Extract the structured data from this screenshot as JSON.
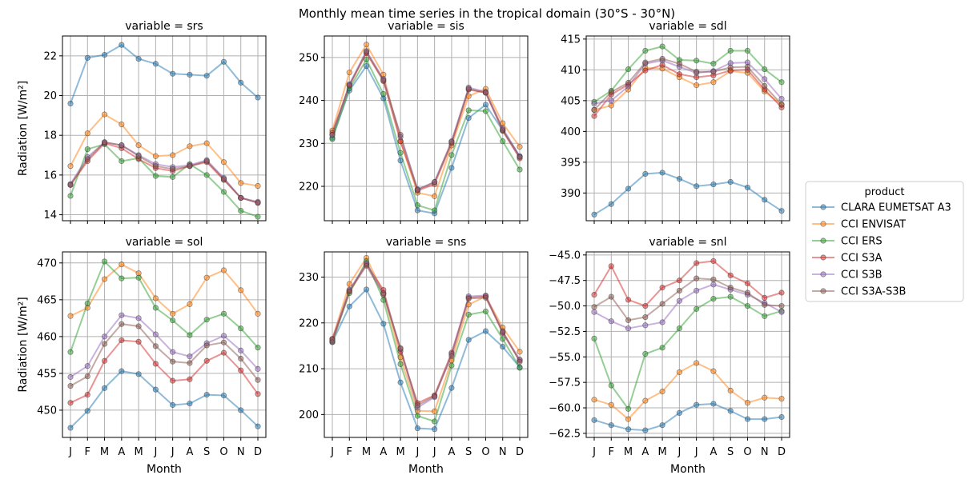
{
  "figure": {
    "title": "Monthly mean time series in the tropical domain (30°S - 30°N)",
    "legend_title": "product",
    "legend_placement": "right",
    "ylabel": "Radiation [W/m²]",
    "xlabel": "Month",
    "grid": true
  },
  "chart_data": [
    {
      "type": "line",
      "title": "variable = srs",
      "ylim": [
        13.7,
        23.0
      ],
      "yticks": [
        14,
        16,
        18,
        20,
        22
      ],
      "yticklabels": [
        "14",
        "16",
        "18",
        "20",
        "22"
      ],
      "categories": [
        "J",
        "F",
        "M",
        "A",
        "M",
        "J",
        "J",
        "A",
        "S",
        "O",
        "N",
        "D"
      ],
      "series": [
        {
          "name": "CLARA EUMETSAT A3",
          "color": "#1f77b4",
          "values": [
            19.6,
            21.9,
            22.05,
            22.55,
            21.85,
            21.6,
            21.1,
            21.05,
            21.0,
            21.7,
            20.65,
            19.9
          ]
        },
        {
          "name": "CCI ENVISAT",
          "color": "#ff7f0e",
          "values": [
            16.45,
            18.1,
            19.05,
            18.55,
            17.5,
            16.95,
            17.0,
            17.45,
            17.6,
            16.65,
            15.6,
            15.45
          ]
        },
        {
          "name": "CCI ERS",
          "color": "#2ca02c",
          "values": [
            14.95,
            17.3,
            17.55,
            16.7,
            16.85,
            15.95,
            15.9,
            16.55,
            16.0,
            15.15,
            14.2,
            13.9
          ]
        },
        {
          "name": "CCI S3A",
          "color": "#d62728",
          "values": [
            15.5,
            16.7,
            17.6,
            17.35,
            16.8,
            16.35,
            16.2,
            16.45,
            16.65,
            15.75,
            14.85,
            14.6
          ]
        },
        {
          "name": "CCI S3B",
          "color": "#9467bd",
          "values": [
            15.55,
            16.9,
            17.65,
            17.5,
            17.0,
            16.55,
            16.4,
            16.5,
            16.75,
            15.85,
            14.85,
            14.65
          ]
        },
        {
          "name": "CCI S3A-S3B",
          "color": "#8c564b",
          "values": [
            15.5,
            16.8,
            17.65,
            17.5,
            16.95,
            16.45,
            16.3,
            16.45,
            16.7,
            15.8,
            14.85,
            14.6
          ]
        }
      ]
    },
    {
      "type": "line",
      "title": "variable = sis",
      "ylim": [
        212.0,
        255.0
      ],
      "yticks": [
        220,
        230,
        240,
        250
      ],
      "yticklabels": [
        "220",
        "230",
        "240",
        "250"
      ],
      "categories": [
        "J",
        "F",
        "M",
        "A",
        "M",
        "J",
        "J",
        "A",
        "S",
        "O",
        "N",
        "D"
      ],
      "series": [
        {
          "name": "CLARA EUMETSAT A3",
          "color": "#1f77b4",
          "values": [
            231.3,
            242.3,
            248.0,
            240.5,
            226.0,
            214.4,
            213.7,
            224.3,
            235.9,
            239.0,
            233.0,
            227.0
          ]
        },
        {
          "name": "CCI ENVISAT",
          "color": "#ff7f0e",
          "values": [
            233.0,
            246.5,
            253.0,
            246.0,
            230.5,
            218.5,
            217.7,
            229.5,
            241.0,
            242.7,
            234.7,
            229.2
          ]
        },
        {
          "name": "CCI ERS",
          "color": "#2ca02c",
          "values": [
            231.0,
            242.8,
            249.5,
            241.5,
            227.8,
            215.6,
            214.4,
            227.3,
            237.7,
            237.5,
            230.5,
            223.9
          ]
        },
        {
          "name": "CCI S3A",
          "color": "#d62728",
          "values": [
            232.5,
            243.5,
            251.0,
            244.5,
            230.5,
            219.0,
            220.5,
            230.0,
            242.5,
            241.8,
            232.9,
            226.5
          ]
        },
        {
          "name": "CCI S3B",
          "color": "#9467bd",
          "values": [
            232.0,
            243.8,
            251.5,
            245.0,
            231.5,
            219.3,
            221.0,
            230.5,
            243.0,
            242.0,
            233.5,
            227.0
          ]
        },
        {
          "name": "CCI S3A-S3B",
          "color": "#8c564b",
          "values": [
            232.0,
            243.5,
            251.3,
            244.7,
            232.0,
            219.2,
            221.0,
            230.3,
            242.7,
            241.8,
            233.2,
            226.8
          ]
        }
      ]
    },
    {
      "type": "line",
      "title": "variable = sdl",
      "ylim": [
        385.5,
        415.5
      ],
      "yticks": [
        390,
        395,
        400,
        405,
        410,
        415
      ],
      "yticklabels": [
        "390",
        "395",
        "400",
        "405",
        "410",
        "415"
      ],
      "categories": [
        "J",
        "F",
        "M",
        "A",
        "M",
        "J",
        "J",
        "A",
        "S",
        "O",
        "N",
        "D"
      ],
      "series": [
        {
          "name": "CLARA EUMETSAT A3",
          "color": "#1f77b4",
          "values": [
            386.5,
            388.2,
            390.7,
            393.1,
            393.3,
            392.3,
            391.1,
            391.4,
            391.8,
            390.9,
            388.9,
            387.1
          ]
        },
        {
          "name": "CCI ENVISAT",
          "color": "#ff7f0e",
          "values": [
            403.5,
            404.2,
            406.8,
            410.3,
            410.2,
            408.8,
            407.5,
            408.0,
            409.8,
            409.5,
            406.5,
            404.3
          ]
        },
        {
          "name": "CCI ERS",
          "color": "#2ca02c",
          "values": [
            404.8,
            406.6,
            410.1,
            413.1,
            413.8,
            411.6,
            411.5,
            411.0,
            413.1,
            413.1,
            410.1,
            408.0
          ]
        },
        {
          "name": "CCI S3A",
          "color": "#d62728",
          "values": [
            402.5,
            406.0,
            407.6,
            409.9,
            410.8,
            409.3,
            408.8,
            409.1,
            409.9,
            410.0,
            406.8,
            403.9
          ]
        },
        {
          "name": "CCI S3B",
          "color": "#9467bd",
          "values": [
            404.5,
            405.0,
            407.3,
            411.0,
            411.5,
            410.5,
            409.5,
            409.8,
            411.1,
            411.2,
            408.5,
            405.3
          ]
        },
        {
          "name": "CCI S3A-S3B",
          "color": "#8c564b",
          "values": [
            403.5,
            406.4,
            407.9,
            411.2,
            411.8,
            411.0,
            409.7,
            409.7,
            410.4,
            410.5,
            407.4,
            404.4
          ]
        }
      ]
    },
    {
      "type": "line",
      "title": "variable = sol",
      "ylim": [
        446.3,
        471.5
      ],
      "yticks": [
        450,
        455,
        460,
        465,
        470
      ],
      "yticklabels": [
        "450",
        "455",
        "460",
        "465",
        "470"
      ],
      "categories": [
        "J",
        "F",
        "M",
        "A",
        "M",
        "J",
        "J",
        "A",
        "S",
        "O",
        "N",
        "D"
      ],
      "series": [
        {
          "name": "CLARA EUMETSAT A3",
          "color": "#1f77b4",
          "values": [
            447.6,
            449.9,
            453.0,
            455.3,
            454.9,
            452.8,
            450.7,
            450.9,
            452.1,
            452.0,
            450.0,
            447.8
          ]
        },
        {
          "name": "CCI ENVISAT",
          "color": "#ff7f0e",
          "values": [
            462.8,
            463.9,
            467.8,
            469.8,
            468.6,
            465.2,
            463.1,
            464.4,
            468.0,
            469.0,
            466.3,
            463.1
          ]
        },
        {
          "name": "CCI ERS",
          "color": "#2ca02c",
          "values": [
            457.9,
            464.5,
            470.2,
            467.9,
            468.0,
            463.9,
            462.2,
            460.2,
            462.3,
            463.1,
            461.1,
            458.5
          ]
        },
        {
          "name": "CCI S3A",
          "color": "#d62728",
          "values": [
            451.0,
            452.1,
            456.7,
            459.5,
            459.3,
            456.3,
            454.0,
            454.2,
            456.7,
            457.8,
            455.4,
            452.2
          ]
        },
        {
          "name": "CCI S3B",
          "color": "#9467bd",
          "values": [
            454.5,
            456.0,
            460.0,
            462.9,
            462.5,
            460.3,
            457.9,
            457.3,
            459.1,
            460.1,
            458.1,
            455.6
          ]
        },
        {
          "name": "CCI S3A-S3B",
          "color": "#8c564b",
          "values": [
            453.3,
            454.6,
            459.0,
            461.7,
            461.4,
            458.7,
            456.6,
            456.4,
            458.8,
            459.2,
            457.0,
            454.1
          ]
        }
      ]
    },
    {
      "type": "line",
      "title": "variable = sns",
      "ylim": [
        195.0,
        235.5
      ],
      "yticks": [
        200,
        210,
        220,
        230
      ],
      "yticklabels": [
        "200",
        "210",
        "220",
        "230"
      ],
      "categories": [
        "J",
        "F",
        "M",
        "A",
        "M",
        "J",
        "J",
        "A",
        "S",
        "O",
        "N",
        "D"
      ],
      "series": [
        {
          "name": "CLARA EUMETSAT A3",
          "color": "#1f77b4",
          "values": [
            215.8,
            223.6,
            227.3,
            219.8,
            207.0,
            197.0,
            196.8,
            205.8,
            216.3,
            218.2,
            214.8,
            210.3
          ]
        },
        {
          "name": "CCI ENVISAT",
          "color": "#ff7f0e",
          "values": [
            216.5,
            228.5,
            234.2,
            226.5,
            212.5,
            200.8,
            200.7,
            211.8,
            224.0,
            225.8,
            219.0,
            213.7
          ]
        },
        {
          "name": "CCI ERS",
          "color": "#2ca02c",
          "values": [
            216.0,
            226.5,
            233.5,
            225.0,
            211.0,
            199.7,
            198.5,
            210.7,
            221.8,
            222.5,
            216.5,
            210.2
          ]
        },
        {
          "name": "CCI S3A",
          "color": "#d62728",
          "values": [
            216.5,
            227.0,
            232.8,
            227.2,
            213.8,
            202.5,
            204.2,
            213.5,
            225.5,
            225.8,
            217.8,
            211.8
          ]
        },
        {
          "name": "CCI S3B",
          "color": "#9467bd",
          "values": [
            216.2,
            227.2,
            233.0,
            226.5,
            214.3,
            201.5,
            203.8,
            213.2,
            225.8,
            226.0,
            218.0,
            212.0
          ]
        },
        {
          "name": "CCI S3A-S3B",
          "color": "#8c564b",
          "values": [
            215.8,
            226.8,
            232.5,
            226.2,
            214.5,
            202.0,
            204.0,
            212.8,
            225.3,
            225.5,
            218.2,
            211.5
          ]
        }
      ]
    },
    {
      "type": "line",
      "title": "variable = snl",
      "ylim": [
        -62.9,
        -44.7
      ],
      "yticks": [
        -62.5,
        -60.0,
        -57.5,
        -55.0,
        -52.5,
        -50.0,
        -47.5,
        -45.0
      ],
      "yticklabels": [
        "−62.5",
        "−60.0",
        "−57.5",
        "−55.0",
        "−52.5",
        "−50.0",
        "−47.5",
        "−45.0"
      ],
      "categories": [
        "J",
        "F",
        "M",
        "A",
        "M",
        "J",
        "J",
        "A",
        "S",
        "O",
        "N",
        "D"
      ],
      "series": [
        {
          "name": "CLARA EUMETSAT A3",
          "color": "#1f77b4",
          "values": [
            -61.2,
            -61.7,
            -62.1,
            -62.2,
            -61.7,
            -60.5,
            -59.7,
            -59.6,
            -60.3,
            -61.1,
            -61.1,
            -60.9
          ]
        },
        {
          "name": "CCI ENVISAT",
          "color": "#ff7f0e",
          "values": [
            -59.2,
            -59.7,
            -61.1,
            -59.3,
            -58.4,
            -56.5,
            -55.6,
            -56.4,
            -58.3,
            -59.5,
            -59.0,
            -59.1
          ]
        },
        {
          "name": "CCI ERS",
          "color": "#2ca02c",
          "values": [
            -53.2,
            -57.8,
            -60.1,
            -54.7,
            -54.1,
            -52.2,
            -50.3,
            -49.3,
            -49.1,
            -50.0,
            -51.0,
            -50.5
          ]
        },
        {
          "name": "CCI S3A",
          "color": "#d62728",
          "values": [
            -48.9,
            -46.1,
            -49.4,
            -50.0,
            -48.2,
            -47.5,
            -45.8,
            -45.6,
            -47.0,
            -47.8,
            -49.2,
            -48.7
          ]
        },
        {
          "name": "CCI S3B",
          "color": "#9467bd",
          "values": [
            -50.6,
            -51.5,
            -52.2,
            -51.9,
            -51.6,
            -49.5,
            -48.5,
            -47.9,
            -48.4,
            -48.9,
            -49.7,
            -50.6
          ]
        },
        {
          "name": "CCI S3A-S3B",
          "color": "#8c564b",
          "values": [
            -50.1,
            -49.1,
            -51.4,
            -51.1,
            -49.8,
            -48.5,
            -47.3,
            -47.4,
            -48.2,
            -48.7,
            -49.9,
            -50.0
          ]
        }
      ]
    }
  ]
}
